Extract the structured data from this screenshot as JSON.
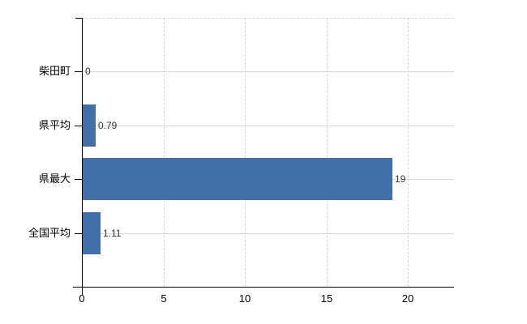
{
  "chart_data": {
    "type": "bar",
    "orientation": "horizontal",
    "title": "",
    "xlabel": "",
    "ylabel": "",
    "categories": [
      "柴田町",
      "県平均",
      "県最大",
      "全国平均"
    ],
    "values": [
      0,
      0.79,
      19,
      1.11
    ],
    "value_labels": [
      "0",
      "0.79",
      "19",
      "1.11"
    ],
    "x_ticks": [
      0,
      5,
      10,
      15,
      20
    ],
    "x_tick_labels": [
      "0",
      "5",
      "10",
      "15",
      "20"
    ],
    "xlim": [
      0,
      22.8
    ],
    "grid": true,
    "legend": "none",
    "colors": {
      "bar": "#4170a8",
      "grid": "#d6dad3",
      "axis": "#000000",
      "category_text": "#000000",
      "value_text": "#333333",
      "background": "#ffffff"
    }
  }
}
